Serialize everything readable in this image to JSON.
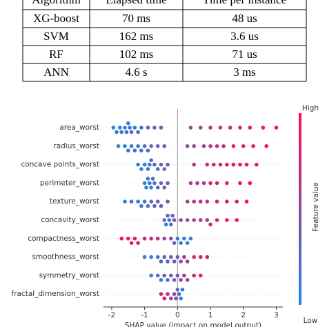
{
  "table": {
    "header": [
      "Algorithm",
      "Elapsed time",
      "Time per instance"
    ],
    "rows": [
      [
        "XG-boost",
        "70 ms",
        "48 us"
      ],
      [
        "SVM",
        "162 ms",
        "3.6 us"
      ],
      [
        "RF",
        "102 ms",
        "71 us"
      ],
      [
        "ANN",
        "4.6 s",
        "3 ms"
      ]
    ]
  },
  "chart_data": {
    "type": "beeswarm",
    "x_label": "SHAP value (impact on model output)",
    "colorbar_label": "Feature value",
    "colorbar_high": "High",
    "colorbar_low": "Low",
    "low_color": "#1e88e5",
    "high_color": "#ff0d57",
    "xlim": [
      -2.25,
      3.2
    ],
    "xticks": [
      -2,
      -1,
      0,
      1,
      2,
      3
    ],
    "series": [
      {
        "name": "area_worst",
        "values": [
          -1.95,
          -1.85,
          -1.75,
          -1.7,
          -1.6,
          -1.55,
          -1.5,
          -1.45,
          -1.4,
          -1.3,
          -1.2,
          -1.1,
          -0.9,
          -0.7,
          -0.5,
          0.4,
          0.7,
          1.0,
          1.3,
          1.6,
          1.9,
          2.2,
          2.6,
          3.0
        ],
        "feature_values": [
          0.05,
          0.1,
          0.05,
          0.15,
          0.1,
          0.2,
          0.1,
          0.15,
          0.2,
          0.1,
          0.25,
          0.2,
          0.3,
          0.3,
          0.35,
          0.55,
          0.6,
          0.7,
          0.65,
          0.8,
          0.75,
          0.9,
          0.95,
          1.0
        ]
      },
      {
        "name": "radius_worst",
        "values": [
          -1.8,
          -1.6,
          -1.5,
          -1.4,
          -1.3,
          -1.2,
          -1.1,
          -1.0,
          -0.9,
          -0.8,
          -0.6,
          -0.4,
          0.3,
          0.5,
          0.8,
          1.0,
          1.2,
          1.4,
          1.7,
          2.0,
          2.3,
          2.7
        ],
        "feature_values": [
          0.05,
          0.1,
          0.1,
          0.15,
          0.2,
          0.15,
          0.1,
          0.25,
          0.2,
          0.3,
          0.3,
          0.35,
          0.5,
          0.55,
          0.6,
          0.65,
          0.7,
          0.75,
          0.8,
          0.85,
          0.9,
          1.0
        ]
      },
      {
        "name": "concave points_worst",
        "values": [
          -1.2,
          -1.1,
          -1.0,
          -0.9,
          -0.85,
          -0.8,
          -0.7,
          -0.6,
          -0.5,
          -0.4,
          -0.3,
          0.5,
          0.9,
          1.1,
          1.3,
          1.5,
          1.7,
          1.9,
          2.1,
          2.4
        ],
        "feature_values": [
          0.05,
          0.1,
          0.1,
          0.15,
          0.1,
          0.2,
          0.2,
          0.25,
          0.3,
          0.3,
          0.35,
          0.6,
          0.7,
          0.75,
          0.8,
          0.85,
          0.85,
          0.9,
          0.95,
          1.0
        ]
      },
      {
        "name": "perimeter_worst",
        "values": [
          -1.0,
          -0.95,
          -0.9,
          -0.85,
          -0.8,
          -0.75,
          -0.7,
          -0.6,
          -0.5,
          -0.4,
          -0.3,
          0.4,
          0.6,
          0.8,
          1.0,
          1.2,
          1.5,
          1.9,
          2.2
        ],
        "feature_values": [
          0.05,
          0.1,
          0.1,
          0.15,
          0.1,
          0.2,
          0.2,
          0.25,
          0.3,
          0.35,
          0.4,
          0.55,
          0.6,
          0.7,
          0.75,
          0.8,
          0.85,
          0.9,
          1.0
        ]
      },
      {
        "name": "texture_worst",
        "values": [
          -1.6,
          -1.4,
          -1.2,
          -1.1,
          -1.0,
          -0.9,
          -0.8,
          -0.7,
          -0.6,
          -0.5,
          -0.3,
          0.3,
          0.5,
          0.7,
          0.9,
          1.2,
          1.5,
          1.8,
          2.1
        ],
        "feature_values": [
          0.1,
          0.15,
          0.1,
          0.2,
          0.15,
          0.25,
          0.2,
          0.3,
          0.3,
          0.35,
          0.4,
          0.55,
          0.6,
          0.65,
          0.7,
          0.8,
          0.85,
          0.9,
          0.95
        ]
      },
      {
        "name": "concavity_worst",
        "values": [
          -0.4,
          -0.35,
          -0.3,
          -0.25,
          -0.2,
          -0.15,
          -0.1,
          0.1,
          0.3,
          0.5,
          0.7,
          0.9,
          1.0,
          1.2,
          1.5,
          1.8
        ],
        "feature_values": [
          0.2,
          0.1,
          0.3,
          0.15,
          0.25,
          0.35,
          0.4,
          0.45,
          0.55,
          0.6,
          0.65,
          0.7,
          0.75,
          0.8,
          0.9,
          1.0
        ]
      },
      {
        "name": "compactness_worst",
        "values": [
          -1.7,
          -1.5,
          -1.4,
          -1.3,
          -1.2,
          -1.0,
          -0.8,
          -0.6,
          -0.4,
          -0.2,
          -0.1,
          0.0,
          0.1,
          0.2,
          0.3,
          0.4
        ],
        "feature_values": [
          1.0,
          0.95,
          0.9,
          0.9,
          0.85,
          0.8,
          0.75,
          0.7,
          0.6,
          0.5,
          0.3,
          0.2,
          0.15,
          0.1,
          0.05,
          0.1
        ]
      },
      {
        "name": "smoothness_worst",
        "values": [
          -1.0,
          -0.8,
          -0.6,
          -0.5,
          -0.4,
          -0.3,
          -0.2,
          -0.1,
          0.0,
          0.1,
          0.2,
          0.3,
          0.5,
          0.7,
          0.9
        ],
        "feature_values": [
          0.1,
          0.15,
          0.2,
          0.25,
          0.3,
          0.2,
          0.35,
          0.4,
          0.3,
          0.5,
          0.55,
          0.6,
          0.7,
          0.8,
          0.9
        ]
      },
      {
        "name": "symmetry_worst",
        "values": [
          -0.8,
          -0.6,
          -0.5,
          -0.4,
          -0.3,
          -0.2,
          -0.1,
          0.0,
          0.1,
          0.2,
          0.3,
          0.5,
          0.7
        ],
        "feature_values": [
          0.1,
          0.2,
          0.15,
          0.3,
          0.25,
          0.35,
          0.4,
          0.45,
          0.5,
          0.6,
          0.7,
          0.8,
          0.9
        ]
      },
      {
        "name": "fractal_dimension_worst",
        "values": [
          -0.5,
          -0.4,
          -0.3,
          -0.2,
          -0.1,
          -0.05,
          0.0,
          0.05,
          0.1,
          0.15
        ],
        "feature_values": [
          0.9,
          0.85,
          0.7,
          0.6,
          0.5,
          0.4,
          0.3,
          0.2,
          0.1,
          0.05
        ]
      }
    ]
  }
}
